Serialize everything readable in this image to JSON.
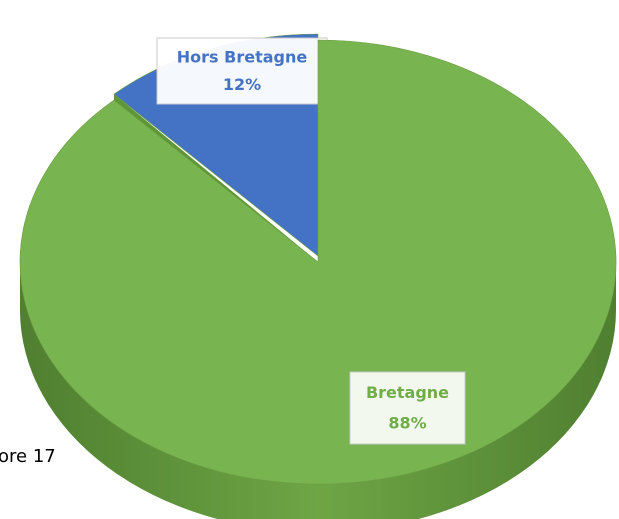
{
  "chart_data": {
    "type": "pie3d",
    "categories": [
      "Hors Bretagne",
      "Bretagne"
    ],
    "values": [
      12,
      88
    ],
    "value_labels": [
      "12%",
      "88%"
    ],
    "colors": [
      "#4472c4",
      "#78b450"
    ],
    "label_colors": [
      "#4472c4",
      "#70ad47"
    ],
    "annotations": [
      "ore 17"
    ]
  }
}
